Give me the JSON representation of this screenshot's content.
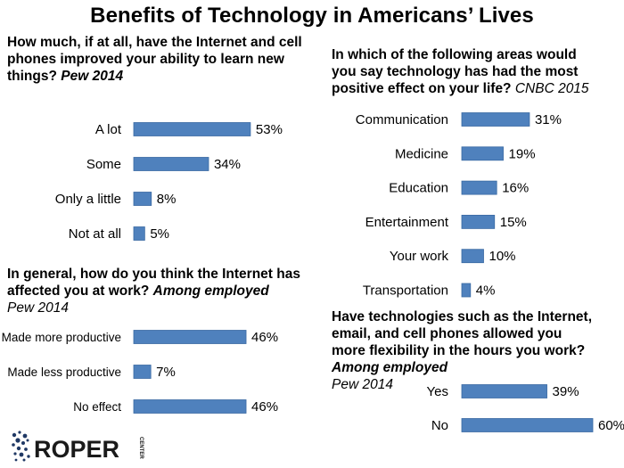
{
  "title": "Benefits of Technology in Americans’ Lives",
  "colors": {
    "bar": "#4f81bd",
    "bar_edge": "#3a6aa3",
    "logo_dots": "#1f3864"
  },
  "logo": {
    "name": "ROPER",
    "sub": "CENTER"
  },
  "panels": {
    "learn": {
      "question": "How much, if at all, have the Internet and cell phones improved your ability to learn new things?",
      "source": "Pew 2014"
    },
    "work": {
      "question": "In general, how do you think the Internet has affected you at work?",
      "qualifier": "Among employed",
      "source": "Pew 2014"
    },
    "areas": {
      "question": "In which of the following areas would you say technology has had the most positive effect on your life?",
      "source": "CNBC 2015"
    },
    "flex": {
      "question": "Have technologies such as the Internet, email, and cell phones allowed you more flexibility in the hours you work?",
      "qualifier": "Among employed",
      "source": "Pew 2014"
    }
  },
  "chart_data": [
    {
      "type": "bar",
      "orientation": "horizontal",
      "title": "How much, if at all, have the Internet and cell phones improved your ability to learn new things? Pew 2014",
      "categories": [
        "A lot",
        "Some",
        "Only a little",
        "Not at all"
      ],
      "values": [
        53,
        34,
        8,
        5
      ],
      "labels": [
        "53%",
        "34%",
        "8%",
        "5%"
      ],
      "unit": "%"
    },
    {
      "type": "bar",
      "orientation": "horizontal",
      "title": "In general, how do you think the Internet has affected you at work? Among employed Pew 2014",
      "categories": [
        "Made more productive",
        "Made less productive",
        "No effect"
      ],
      "values": [
        46,
        7,
        46
      ],
      "labels": [
        "46%",
        "7%",
        "46%"
      ],
      "unit": "%"
    },
    {
      "type": "bar",
      "orientation": "horizontal",
      "title": "In which of the following areas would you say technology has had the most positive effect on your life? CNBC 2015",
      "categories": [
        "Communication",
        "Medicine",
        "Education",
        "Entertainment",
        "Your work",
        "Transportation"
      ],
      "values": [
        31,
        19,
        16,
        15,
        10,
        4
      ],
      "labels": [
        "31%",
        "19%",
        "16%",
        "15%",
        "10%",
        "4%"
      ],
      "unit": "%"
    },
    {
      "type": "bar",
      "orientation": "horizontal",
      "title": "Have technologies such as the Internet, email, and cell phones allowed you more flexibility in the hours you work? Among employed Pew 2014",
      "categories": [
        "Yes",
        "No"
      ],
      "values": [
        39,
        60
      ],
      "labels": [
        "39%",
        "60%"
      ],
      "unit": "%"
    }
  ]
}
